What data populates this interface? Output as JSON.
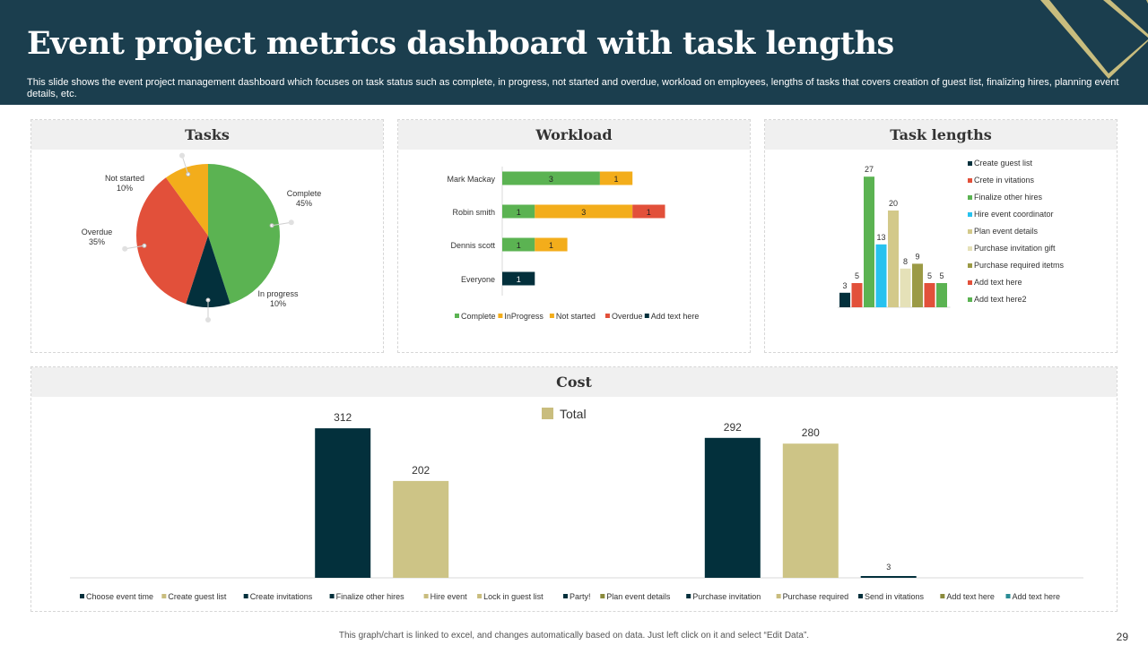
{
  "slide": {
    "title": "Event project metrics dashboard with task lengths",
    "description": "This slide shows the event project management dashboard which focuses on task status such as complete, in progress, not started and overdue, workload on employees, lengths of tasks that covers creation of guest list, finalizing hires, planning event details, etc.",
    "footer": "This graph/chart is linked to excel, and changes automatically based on data. Just left click on it and select “Edit Data”.",
    "page_number": "29"
  },
  "colors": {
    "header_bg": "#1b3e4e",
    "accent_gold": "#c9bd7e",
    "dark_teal": "#03303c",
    "green": "#5bb352",
    "orange": "#f3ad1b",
    "red": "#e2503a"
  },
  "chart_data": [
    {
      "id": "tasks",
      "type": "pie",
      "title": "Tasks",
      "slices": [
        {
          "label": "Complete",
          "pct_label": "45%",
          "value": 45,
          "color": "#5bb352"
        },
        {
          "label": "In progress",
          "pct_label": "10%",
          "value": 10,
          "color": "#03303c"
        },
        {
          "label": "Overdue",
          "pct_label": "35%",
          "value": 35,
          "color": "#e2503a"
        },
        {
          "label": "Not started",
          "pct_label": "10%",
          "value": 10,
          "color": "#f3ad1b"
        }
      ]
    },
    {
      "id": "workload",
      "type": "bar",
      "orientation": "horizontal",
      "stacked": true,
      "title": "Workload",
      "categories": [
        "Mark Mackay",
        "Robin smith",
        "Dennis scott",
        "Everyone"
      ],
      "series": [
        {
          "name": "Complete",
          "color": "#5bb352",
          "values": [
            3,
            1,
            1,
            0
          ]
        },
        {
          "name": "InProgress",
          "color": "#f3ad1b",
          "values": [
            0,
            3,
            1,
            0
          ]
        },
        {
          "name": "Not started",
          "color": "#f3ad1b",
          "values": [
            1,
            0,
            0,
            0
          ]
        },
        {
          "name": "Overdue",
          "color": "#e2503a",
          "values": [
            0,
            1,
            0,
            0
          ]
        },
        {
          "name": "Add text here",
          "color": "#03303c",
          "values": [
            0,
            0,
            0,
            1
          ]
        }
      ],
      "legend": "bottom"
    },
    {
      "id": "task_lengths",
      "type": "bar",
      "title": "Task lengths",
      "series": [
        {
          "name": "Create guest list",
          "value": 3,
          "color": "#03303c"
        },
        {
          "name": "Crete in vitations",
          "value": 5,
          "color": "#e2503a"
        },
        {
          "name": "Finalize other hires",
          "value": 27,
          "color": "#5bb352"
        },
        {
          "name": "Hire event coordinator",
          "value": 13,
          "color": "#27c2ef"
        },
        {
          "name": "Plan event details",
          "value": 20,
          "color": "#d3c98a"
        },
        {
          "name": "Purchase invitation gift",
          "value": 8,
          "color": "#e5e1b8"
        },
        {
          "name": "Purchase required itetms",
          "value": 9,
          "color": "#9b9a45"
        },
        {
          "name": "Add text here",
          "value": 5,
          "color": "#e2503a"
        },
        {
          "name": "Add text here2",
          "value": 5,
          "color": "#5bb352"
        }
      ],
      "legend": "right"
    },
    {
      "id": "cost",
      "type": "bar",
      "title": "Cost",
      "legend_label": "Total",
      "categories": [
        "Choose event time",
        "Create guest list",
        "Create invitations",
        "Finalize other hires",
        "Hire event",
        "Lock in guest list",
        "Party!",
        "Plan event details",
        "Purchase invitation",
        "Purchase required",
        "Send in vitations",
        "Add text here",
        "Add text here"
      ],
      "category_colors": [
        "#03303c",
        "#c9bd7e",
        "#03303c",
        "#03303c",
        "#c9bd7e",
        "#c9bd7e",
        "#03303c",
        "#8a8a3c",
        "#03303c",
        "#c9bd7e",
        "#03303c",
        "#8a8a3c",
        "#2a8c95"
      ],
      "bars": [
        {
          "category": "Finalize other hires",
          "value": 312,
          "color": "#03303c"
        },
        {
          "category": "Hire event",
          "value": 202,
          "color": "#cdc486"
        },
        {
          "category": "Purchase invitation",
          "value": 292,
          "color": "#03303c"
        },
        {
          "category": "Purchase required",
          "value": 280,
          "color": "#cdc486"
        },
        {
          "category": "Send in vitations",
          "value": 3,
          "color": "#03303c"
        }
      ],
      "legend": "top-center"
    }
  ]
}
